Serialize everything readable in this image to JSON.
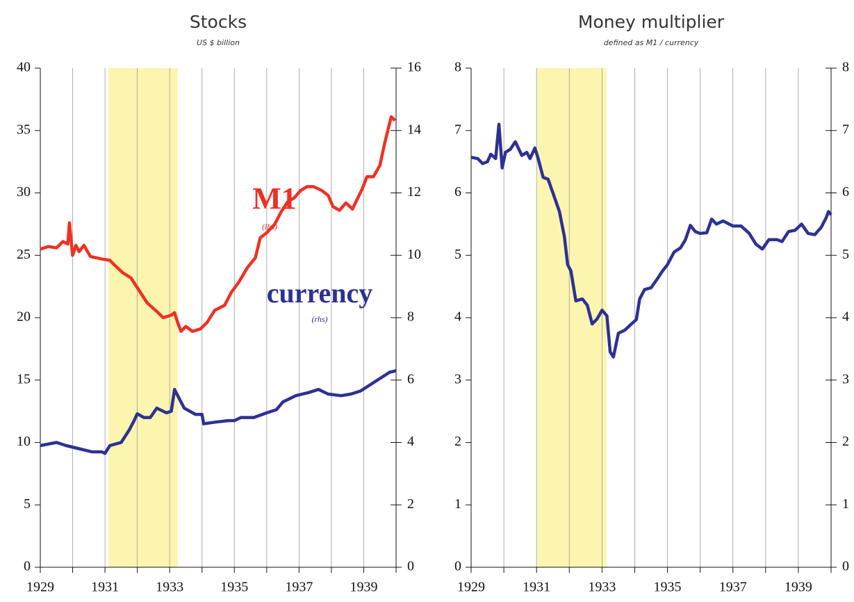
{
  "chart_data": [
    {
      "type": "line",
      "title": "Stocks",
      "subtitle": "US $ billion",
      "xlim": [
        1929,
        1940
      ],
      "xticks": [
        1929,
        1931,
        1933,
        1935,
        1937,
        1939
      ],
      "xminorticks": [
        1930,
        1932,
        1934,
        1936,
        1938,
        1940
      ],
      "ylim": [
        0,
        40
      ],
      "yticks": [
        0,
        5,
        10,
        15,
        20,
        25,
        30,
        35,
        40
      ],
      "y2lim": [
        0,
        16
      ],
      "y2ticks": [
        0,
        2,
        4,
        6,
        8,
        10,
        12,
        14,
        16
      ],
      "grid": true,
      "shade": {
        "xmin": 1931.1,
        "xmax": 1933.25,
        "color": "#fbf5b0"
      },
      "series": [
        {
          "name": "M1",
          "color": "#ee3124",
          "axis": "y",
          "note": "(lhs)",
          "x": [
            1929,
            1929.25,
            1929.5,
            1929.7,
            1929.85,
            1929.9,
            1930.0,
            1930.1,
            1930.2,
            1930.35,
            1930.55,
            1930.9,
            1931.15,
            1931.3,
            1931.55,
            1931.8,
            1932.05,
            1932.3,
            1932.6,
            1932.8,
            1933.05,
            1933.15,
            1933.25,
            1933.35,
            1933.5,
            1933.7,
            1933.95,
            1934.15,
            1934.4,
            1934.7,
            1934.9,
            1935.15,
            1935.4,
            1935.65,
            1935.8,
            1936.0,
            1936.25,
            1936.45,
            1936.65,
            1936.85,
            1937.05,
            1937.25,
            1937.45,
            1937.7,
            1937.9,
            1938.05,
            1938.25,
            1938.45,
            1938.65,
            1938.8,
            1938.95,
            1939.1,
            1939.3,
            1939.5,
            1939.65,
            1939.85,
            1939.97
          ],
          "values": [
            25.5,
            25.7,
            25.6,
            26.1,
            25.9,
            27.6,
            25.0,
            25.8,
            25.3,
            25.8,
            24.9,
            24.7,
            24.6,
            24.2,
            23.6,
            23.2,
            22.2,
            21.2,
            20.5,
            20.0,
            20.2,
            20.4,
            19.6,
            18.9,
            19.3,
            18.9,
            19.1,
            19.6,
            20.6,
            21.0,
            22.0,
            22.9,
            24.0,
            24.8,
            26.4,
            26.8,
            27.5,
            28.5,
            29.3,
            29.6,
            30.2,
            30.5,
            30.5,
            30.2,
            29.8,
            28.9,
            28.6,
            29.2,
            28.7,
            29.5,
            30.3,
            31.3,
            31.3,
            32.2,
            34.0,
            36.1,
            35.8
          ]
        },
        {
          "name": "currency",
          "color": "#2e3192",
          "axis": "y2",
          "note": "(rhs)",
          "x": [
            1929,
            1929.5,
            1929.8,
            1930.2,
            1930.6,
            1930.9,
            1931.0,
            1931.15,
            1931.5,
            1931.75,
            1931.9,
            1932.0,
            1932.2,
            1932.4,
            1932.6,
            1932.9,
            1933.05,
            1933.15,
            1933.3,
            1933.45,
            1933.8,
            1934.0,
            1934.05,
            1934.4,
            1934.8,
            1935.0,
            1935.2,
            1935.6,
            1936.0,
            1936.3,
            1936.5,
            1936.9,
            1937.3,
            1937.6,
            1937.9,
            1938.3,
            1938.6,
            1938.9,
            1939.2,
            1939.5,
            1939.8,
            1940.0
          ],
          "values": [
            3.9,
            4.0,
            3.9,
            3.8,
            3.7,
            3.7,
            3.65,
            3.9,
            4.0,
            4.4,
            4.7,
            4.92,
            4.8,
            4.8,
            5.1,
            4.95,
            5.0,
            5.7,
            5.4,
            5.1,
            4.9,
            4.9,
            4.6,
            4.65,
            4.7,
            4.7,
            4.8,
            4.8,
            4.95,
            5.05,
            5.3,
            5.5,
            5.6,
            5.7,
            5.55,
            5.5,
            5.55,
            5.65,
            5.85,
            6.05,
            6.25,
            6.3
          ]
        }
      ]
    },
    {
      "type": "line",
      "title": "Money multiplier",
      "subtitle": "defined as M1 / currency",
      "xlim": [
        1929,
        1940
      ],
      "xticks": [
        1929,
        1931,
        1933,
        1935,
        1937,
        1939
      ],
      "xminorticks": [
        1930,
        1932,
        1934,
        1936,
        1938,
        1940
      ],
      "ylim": [
        0,
        8
      ],
      "yticks": [
        0,
        1,
        2,
        3,
        4,
        5,
        6,
        7,
        8
      ],
      "y2lim": [
        0,
        8
      ],
      "y2ticks": [
        0,
        1,
        2,
        3,
        4,
        5,
        6,
        7,
        8
      ],
      "grid": true,
      "shade": {
        "xmin": 1931.02,
        "xmax": 1933.14,
        "color": "#fbf5b0"
      },
      "series": [
        {
          "color": "#2e3192",
          "axis": "y",
          "x": [
            1929,
            1929.2,
            1929.35,
            1929.5,
            1929.6,
            1929.75,
            1929.85,
            1929.95,
            1930.05,
            1930.2,
            1930.35,
            1930.55,
            1930.7,
            1930.8,
            1930.95,
            1931.05,
            1931.2,
            1931.35,
            1931.5,
            1931.7,
            1931.85,
            1931.95,
            1932.05,
            1932.2,
            1932.4,
            1932.55,
            1932.7,
            1932.85,
            1933.0,
            1933.15,
            1933.25,
            1933.35,
            1933.5,
            1933.7,
            1933.9,
            1934.05,
            1934.15,
            1934.3,
            1934.5,
            1934.7,
            1934.85,
            1935.0,
            1935.2,
            1935.4,
            1935.55,
            1935.7,
            1935.85,
            1936.0,
            1936.2,
            1936.35,
            1936.5,
            1936.7,
            1937.0,
            1937.25,
            1937.5,
            1937.7,
            1937.9,
            1938.1,
            1938.35,
            1938.5,
            1938.7,
            1938.9,
            1939.1,
            1939.3,
            1939.5,
            1939.7,
            1939.85,
            1939.92,
            1940.0
          ],
          "values": [
            6.57,
            6.55,
            6.47,
            6.5,
            6.62,
            6.55,
            7.1,
            6.4,
            6.65,
            6.7,
            6.82,
            6.6,
            6.65,
            6.55,
            6.72,
            6.55,
            6.25,
            6.22,
            6.0,
            5.7,
            5.3,
            4.85,
            4.75,
            4.27,
            4.3,
            4.2,
            3.9,
            3.98,
            4.12,
            4.03,
            3.45,
            3.37,
            3.75,
            3.8,
            3.9,
            3.97,
            4.3,
            4.45,
            4.48,
            4.63,
            4.75,
            4.85,
            5.05,
            5.12,
            5.25,
            5.48,
            5.38,
            5.35,
            5.36,
            5.58,
            5.5,
            5.55,
            5.47,
            5.47,
            5.35,
            5.18,
            5.1,
            5.25,
            5.25,
            5.22,
            5.38,
            5.4,
            5.5,
            5.35,
            5.33,
            5.45,
            5.6,
            5.7,
            5.65
          ]
        }
      ]
    }
  ]
}
